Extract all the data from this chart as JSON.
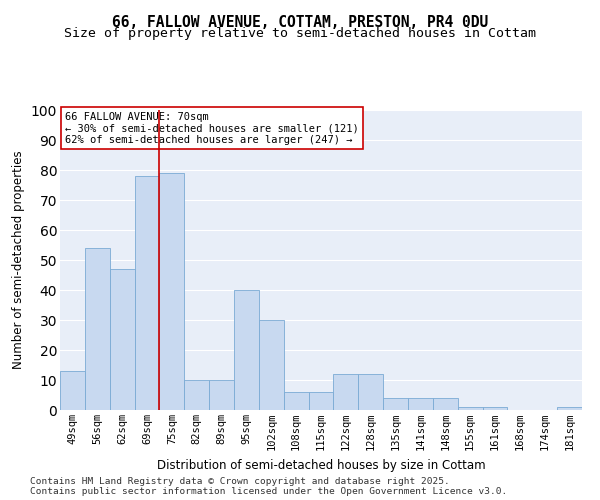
{
  "title1": "66, FALLOW AVENUE, COTTAM, PRESTON, PR4 0DU",
  "title2": "Size of property relative to semi-detached houses in Cottam",
  "xlabel": "Distribution of semi-detached houses by size in Cottam",
  "ylabel": "Number of semi-detached properties",
  "categories": [
    "49sqm",
    "56sqm",
    "62sqm",
    "69sqm",
    "75sqm",
    "82sqm",
    "89sqm",
    "95sqm",
    "102sqm",
    "108sqm",
    "115sqm",
    "122sqm",
    "128sqm",
    "135sqm",
    "141sqm",
    "148sqm",
    "155sqm",
    "161sqm",
    "168sqm",
    "174sqm",
    "181sqm"
  ],
  "values": [
    13,
    54,
    47,
    78,
    79,
    10,
    10,
    40,
    30,
    6,
    6,
    12,
    12,
    4,
    4,
    4,
    1,
    1,
    0,
    0,
    1
  ],
  "bar_color": "#c8d9f0",
  "bar_edge_color": "#7aaad4",
  "ref_line_color": "#cc0000",
  "ref_line_x": 3.5,
  "annotation_text": "66 FALLOW AVENUE: 70sqm\n← 30% of semi-detached houses are smaller (121)\n62% of semi-detached houses are larger (247) →",
  "annotation_box_color": "white",
  "annotation_box_edgecolor": "#cc0000",
  "footer1": "Contains HM Land Registry data © Crown copyright and database right 2025.",
  "footer2": "Contains public sector information licensed under the Open Government Licence v3.0.",
  "ylim": [
    0,
    100
  ],
  "background_color": "#e8eef8",
  "grid_color": "#ffffff",
  "title_fontsize": 10.5,
  "subtitle_fontsize": 9.5,
  "axis_label_fontsize": 8.5,
  "tick_fontsize": 7.5,
  "annotation_fontsize": 7.5,
  "footer_fontsize": 6.8,
  "yticks": [
    0,
    10,
    20,
    30,
    40,
    50,
    60,
    70,
    80,
    90,
    100
  ]
}
